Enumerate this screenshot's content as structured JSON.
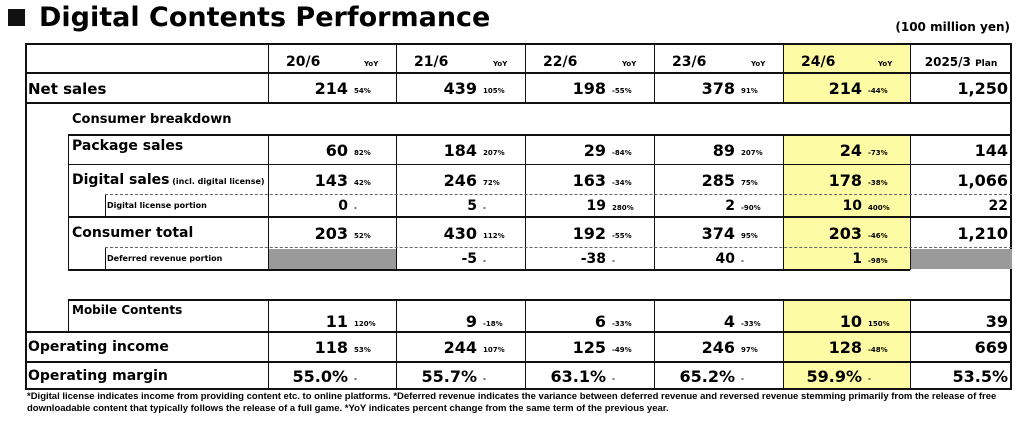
{
  "title": "Digital Contents Performance",
  "unit": "(100 million yen)",
  "columns": [
    {
      "label": "20/6",
      "yoy": "YoY",
      "highlight": false
    },
    {
      "label": "21/6",
      "yoy": "YoY",
      "highlight": false
    },
    {
      "label": "22/6",
      "yoy": "YoY",
      "highlight": false
    },
    {
      "label": "23/6",
      "yoy": "YoY",
      "highlight": false
    },
    {
      "label": "24/6",
      "yoy": "YoY",
      "highlight": true
    },
    {
      "label": "2025/3",
      "suffix": "Plan",
      "highlight": false
    }
  ],
  "highlight_color": "#fdfba3",
  "rows": [
    {
      "label": "Net sales",
      "values": [
        [
          "214",
          "54%"
        ],
        [
          "439",
          "105%"
        ],
        [
          "198",
          "-55%"
        ],
        [
          "378",
          "91%"
        ],
        [
          "214",
          "-44%"
        ],
        [
          "1,250"
        ]
      ]
    },
    {
      "label": "Consumer breakdown",
      "section": true
    },
    {
      "label": "Package sales",
      "values": [
        [
          "60",
          "82%"
        ],
        [
          "184",
          "207%"
        ],
        [
          "29",
          "-84%"
        ],
        [
          "89",
          "207%"
        ],
        [
          "24",
          "-73%"
        ],
        [
          "144"
        ]
      ]
    },
    {
      "label": "Digital sales",
      "note": "(incl. digital license)",
      "values": [
        [
          "143",
          "42%"
        ],
        [
          "246",
          "72%"
        ],
        [
          "163",
          "-34%"
        ],
        [
          "285",
          "75%"
        ],
        [
          "178",
          "-38%"
        ],
        [
          "1,066"
        ]
      ]
    },
    {
      "label": "Digital license portion",
      "values": [
        [
          "0",
          "-"
        ],
        [
          "5",
          "-"
        ],
        [
          "19",
          "280%"
        ],
        [
          "2",
          "-90%"
        ],
        [
          "10",
          "400%"
        ],
        [
          "22"
        ]
      ]
    },
    {
      "label": "Consumer total",
      "values": [
        [
          "203",
          "52%"
        ],
        [
          "430",
          "112%"
        ],
        [
          "192",
          "-55%"
        ],
        [
          "374",
          "95%"
        ],
        [
          "203",
          "-46%"
        ],
        [
          "1,210"
        ]
      ]
    },
    {
      "label": "Deferred revenue portion",
      "values": [
        null,
        [
          "-5",
          "-"
        ],
        [
          "-38",
          "-"
        ],
        [
          "40",
          "-"
        ],
        [
          "1",
          "-98%"
        ],
        null
      ]
    },
    {
      "label": "Mobile Contents",
      "values": [
        [
          "11",
          "120%"
        ],
        [
          "9",
          "-18%"
        ],
        [
          "6",
          "-33%"
        ],
        [
          "4",
          "-33%"
        ],
        [
          "10",
          "150%"
        ],
        [
          "39"
        ]
      ]
    },
    {
      "label": "Operating income",
      "values": [
        [
          "118",
          "53%"
        ],
        [
          "244",
          "107%"
        ],
        [
          "125",
          "-49%"
        ],
        [
          "246",
          "97%"
        ],
        [
          "128",
          "-48%"
        ],
        [
          "669"
        ]
      ]
    },
    {
      "label": "Operating margin",
      "values": [
        [
          "55.0%",
          "-"
        ],
        [
          "55.7%",
          "-"
        ],
        [
          "63.1%",
          "-"
        ],
        [
          "65.2%",
          "-"
        ],
        [
          "59.9%",
          "-"
        ],
        [
          "53.5%"
        ]
      ]
    }
  ],
  "footnote": "*Digital license indicates income from providing content etc. to online platforms. *Deferred revenue indicates the variance between deferred revenue and reversed revenue stemming primarily from the release of free downloadable content that typically follows the release of a full game. *YoY indicates percent change from the same term of the previous year."
}
